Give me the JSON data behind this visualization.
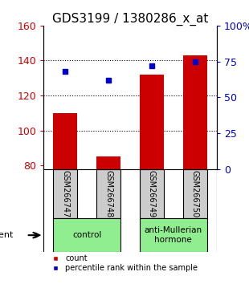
{
  "title": "GDS3199 / 1380286_x_at",
  "samples": [
    "GSM266747",
    "GSM266748",
    "GSM266749",
    "GSM266750"
  ],
  "bar_values": [
    110,
    85,
    132,
    143
  ],
  "percentile_values": [
    68,
    62,
    72,
    75
  ],
  "bar_color": "#cc0000",
  "percentile_color": "#0000cc",
  "ylim_left": [
    78,
    160
  ],
  "ylim_right": [
    0,
    100
  ],
  "yticks_left": [
    80,
    100,
    120,
    140,
    160
  ],
  "yticks_right": [
    0,
    25,
    50,
    75,
    100
  ],
  "ytick_labels_right": [
    "0",
    "25",
    "50",
    "75",
    "100%"
  ],
  "groups": [
    {
      "label": "control",
      "samples": [
        0,
        1
      ]
    },
    {
      "label": "anti-Mullerian\nhormone",
      "samples": [
        2,
        3
      ]
    }
  ],
  "group_color": "#90ee90",
  "sample_box_color": "#cccccc",
  "agent_label": "agent",
  "legend_items": [
    {
      "color": "#cc0000",
      "label": "count"
    },
    {
      "color": "#0000cc",
      "label": "percentile rank within the sample"
    }
  ],
  "bar_width": 0.55,
  "background_color": "#ffffff",
  "title_fontsize": 11,
  "tick_fontsize": 9,
  "gridline_ticks": [
    100,
    120,
    140
  ]
}
